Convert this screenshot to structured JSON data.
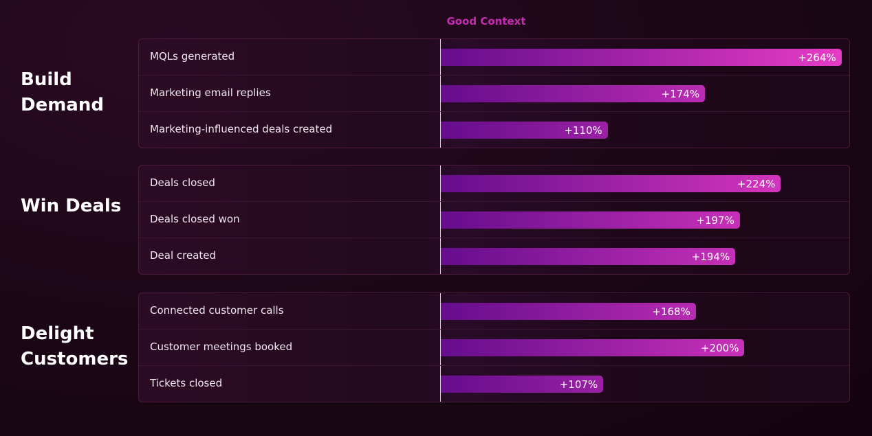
{
  "chart_data": {
    "type": "bar",
    "header": "Good Context",
    "xlim": [
      0,
      270
    ],
    "bar_colors": [
      "#650d8c",
      "#ea3dc8"
    ],
    "groups": [
      {
        "name": "Build Demand",
        "categories": [
          "MQLs generated",
          "Marketing email replies",
          "Marketing-influenced deals created"
        ],
        "values": [
          264,
          174,
          110
        ],
        "value_labels": [
          "+264%",
          "+174%",
          "+110%"
        ]
      },
      {
        "name": "Win Deals",
        "categories": [
          "Deals closed",
          "Deals closed won",
          "Deal created"
        ],
        "values": [
          224,
          197,
          194
        ],
        "value_labels": [
          "+224%",
          "+197%",
          "+194%"
        ]
      },
      {
        "name": "Delight Customers",
        "categories": [
          "Connected customer calls",
          "Customer meetings booked",
          "Tickets closed"
        ],
        "values": [
          168,
          200,
          107
        ],
        "value_labels": [
          "+168%",
          "+200%",
          "+107%"
        ]
      }
    ]
  }
}
